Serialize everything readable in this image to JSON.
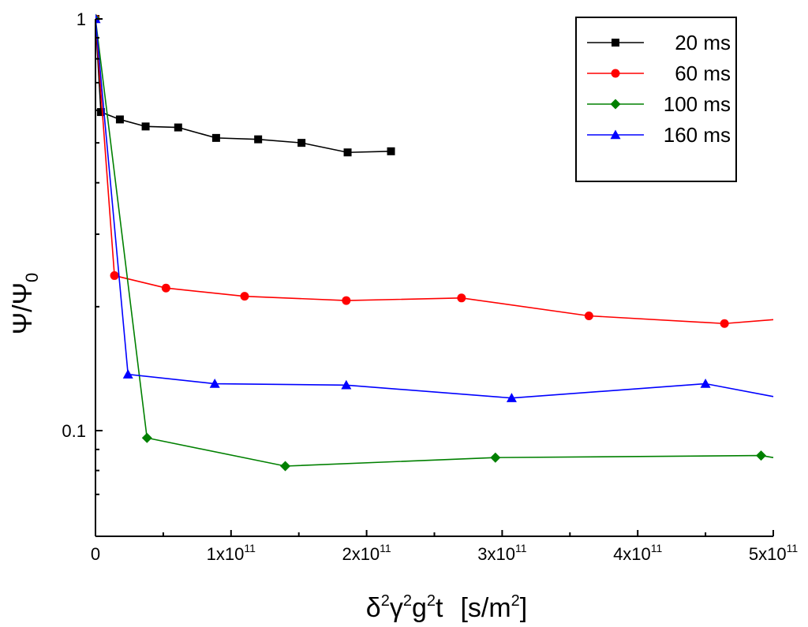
{
  "chart_data": {
    "type": "line",
    "title": "",
    "xlabel": "δ²γ²g²t  [s/m²]",
    "xlabel_parts": {
      "delta": "δ",
      "delta_exp": "2",
      "gamma": "γ",
      "gamma_exp": "2",
      "g": "g",
      "g_exp": "2",
      "t": "t",
      "unit_open": "[s/m",
      "unit_exp": "2",
      "unit_close": "]"
    },
    "ylabel": "Ψ/Ψ0",
    "ylabel_parts": {
      "main": "Ψ/Ψ",
      "sub": "0"
    },
    "x_scale": "linear",
    "y_scale": "log",
    "xlim": [
      0,
      500000000000.0
    ],
    "ylim": [
      0.06,
      1
    ],
    "x_ticks": [
      {
        "value": 0,
        "mantissa": "0",
        "exp": ""
      },
      {
        "value": 100000000000.0,
        "mantissa": "1x10",
        "exp": "11"
      },
      {
        "value": 200000000000.0,
        "mantissa": "2x10",
        "exp": "11"
      },
      {
        "value": 300000000000.0,
        "mantissa": "3x10",
        "exp": "11"
      },
      {
        "value": 400000000000.0,
        "mantissa": "4x10",
        "exp": "11"
      },
      {
        "value": 500000000000.0,
        "mantissa": "5x10",
        "exp": "11"
      }
    ],
    "y_ticks": [
      {
        "value": 1,
        "label": "1"
      },
      {
        "value": 0.1,
        "label": "0.1"
      }
    ],
    "y_minor_ticks": [
      0.9,
      0.8,
      0.7,
      0.6,
      0.5,
      0.4,
      0.3,
      0.2,
      0.09,
      0.08,
      0.07
    ],
    "grid": false,
    "legend_position": "top-right",
    "series": [
      {
        "name": "20 ms",
        "color": "#000000",
        "marker": "square",
        "points": [
          [
            0,
            1.0
          ],
          [
            4000000000.0,
            0.594
          ],
          [
            18000000000.0,
            0.57
          ],
          [
            37000000000.0,
            0.548
          ],
          [
            61000000000.0,
            0.545
          ],
          [
            89000000000.0,
            0.514
          ],
          [
            120000000000.0,
            0.51
          ],
          [
            152000000000.0,
            0.5
          ],
          [
            186000000000.0,
            0.474
          ],
          [
            218000000000.0,
            0.477
          ]
        ]
      },
      {
        "name": "60 ms",
        "color": "#ff0000",
        "marker": "circle",
        "points": [
          [
            0,
            1.0
          ],
          [
            14000000000.0,
            0.238
          ],
          [
            52000000000.0,
            0.222
          ],
          [
            110000000000.0,
            0.212
          ],
          [
            185000000000.0,
            0.207
          ],
          [
            270000000000.0,
            0.21
          ],
          [
            364000000000.0,
            0.19
          ],
          [
            464000000000.0,
            0.182
          ],
          [
            500000000000.0,
            0.186
          ]
        ]
      },
      {
        "name": "100 ms",
        "color": "#008000",
        "marker": "diamond",
        "points": [
          [
            0,
            1.0
          ],
          [
            38000000000.0,
            0.096
          ],
          [
            140000000000.0,
            0.082
          ],
          [
            295000000000.0,
            0.086
          ],
          [
            491000000000.0,
            0.087
          ],
          [
            500000000000.0,
            0.086
          ]
        ]
      },
      {
        "name": "160 ms",
        "color": "#0000ff",
        "marker": "triangle",
        "points": [
          [
            0,
            1.0
          ],
          [
            24000000000.0,
            0.137
          ],
          [
            88000000000.0,
            0.13
          ],
          [
            185000000000.0,
            0.129
          ],
          [
            307000000000.0,
            0.12
          ],
          [
            450000000000.0,
            0.13
          ],
          [
            500000000000.0,
            0.121
          ]
        ]
      }
    ]
  }
}
